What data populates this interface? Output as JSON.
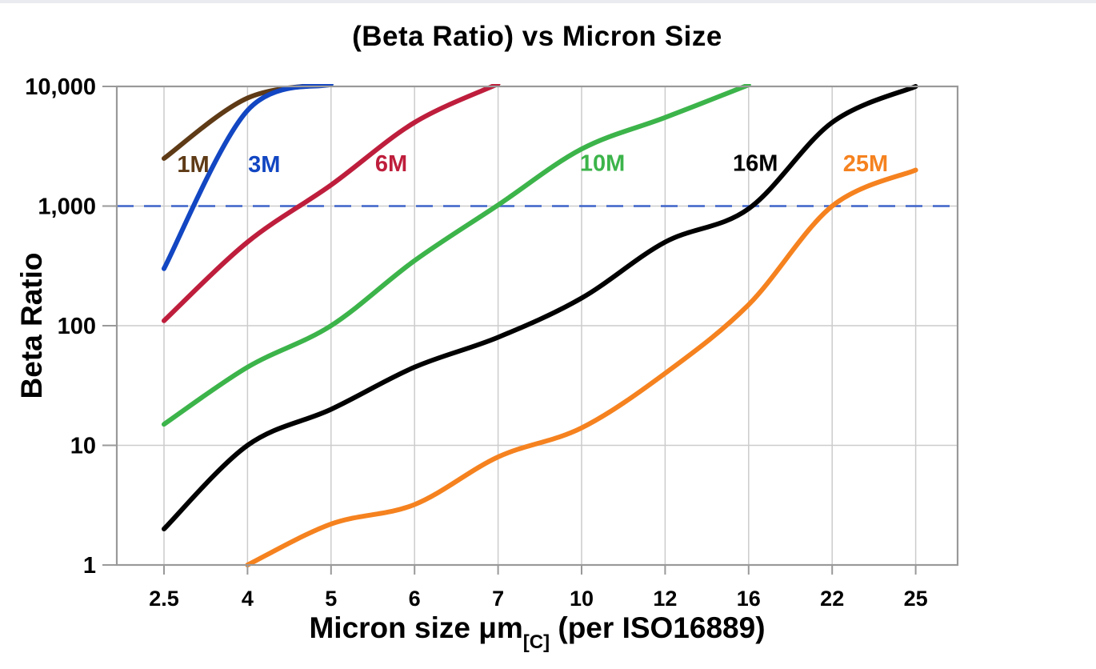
{
  "page": {
    "top_strip_color": "#e9ebf0",
    "background_color": "#ffffff"
  },
  "chart_data": {
    "type": "line",
    "title": "(Beta Ratio) vs Micron Size",
    "x_axis": {
      "label_main": "Micron size μm",
      "label_subscript": "[C]",
      "label_suffix": " (per ISO16889)",
      "scale": "ordinal",
      "tick_labels": [
        "2.5",
        "4",
        "5",
        "6",
        "7",
        "10",
        "12",
        "16",
        "22",
        "25"
      ]
    },
    "y_axis": {
      "label": "Beta Ratio",
      "scale": "log",
      "tick_values": [
        1,
        10,
        100,
        1000,
        10000
      ],
      "tick_labels": [
        "1",
        "10",
        "100",
        "1,000",
        "10,000"
      ],
      "range": [
        1,
        10000
      ]
    },
    "reference_line": {
      "beta": 1000,
      "style": "dashed",
      "color": "#3E64C8"
    },
    "grid": {
      "line_color": "#cccccc",
      "border_color": "#999999"
    },
    "categories": [
      2.5,
      4,
      5,
      6,
      7,
      10,
      12,
      16,
      22,
      25
    ],
    "series": [
      {
        "name": "1M",
        "color": "#5E3A16",
        "values": [
          2500,
          8000,
          10500,
          null,
          null,
          null,
          null,
          null,
          null,
          null
        ],
        "label": {
          "xi": 0.35,
          "beta": 2250
        }
      },
      {
        "name": "3M",
        "color": "#1246C2",
        "values": [
          300,
          6300,
          10400,
          null,
          null,
          null,
          null,
          null,
          null,
          null
        ],
        "label": {
          "xi": 1.2,
          "beta": 2250
        }
      },
      {
        "name": "6M",
        "color": "#BE1E3C",
        "values": [
          110,
          500,
          1500,
          5000,
          10500,
          null,
          null,
          null,
          null,
          null
        ],
        "label": {
          "xi": 2.72,
          "beta": 2280
        }
      },
      {
        "name": "10M",
        "color": "#3CB44A",
        "values": [
          15,
          45,
          100,
          350,
          1020,
          3000,
          5500,
          10300,
          null,
          null
        ],
        "label": {
          "xi": 5.25,
          "beta": 2300
        }
      },
      {
        "name": "16M",
        "color": "#000000",
        "values": [
          2,
          10,
          20,
          45,
          80,
          170,
          500,
          950,
          5000,
          10000
        ],
        "label": {
          "xi": 7.08,
          "beta": 2300
        }
      },
      {
        "name": "25M",
        "color": "#F5821F",
        "values": [
          null,
          1,
          2.2,
          3.2,
          8,
          14,
          40,
          150,
          1000,
          2000
        ],
        "label": {
          "xi": 8.4,
          "beta": 2280
        }
      }
    ]
  }
}
